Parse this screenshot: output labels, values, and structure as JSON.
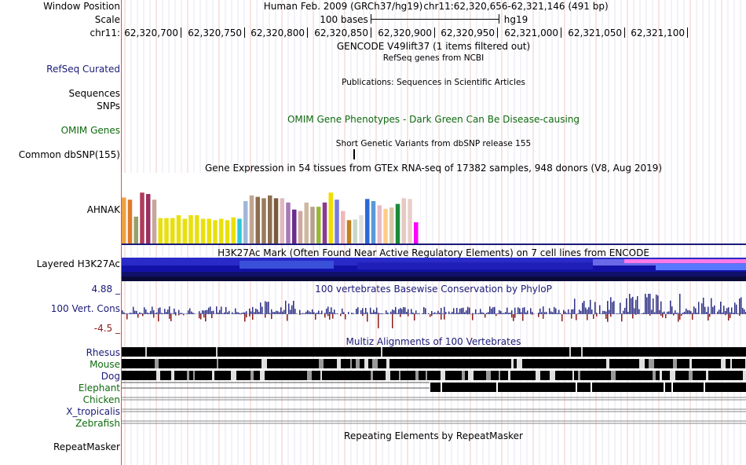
{
  "labels": {
    "window_position": "Window Position",
    "scale": "Scale",
    "chrom": "chr11:",
    "refseq": "RefSeq Curated",
    "sequences": "Sequences",
    "snps": "SNPs",
    "omim": "OMIM Genes",
    "common_dbsnp": "Common dbSNP(155)",
    "gtex_gene": "AHNAK",
    "h3k27ac": "Layered H3K27Ac",
    "cons_max": "4.88 _",
    "cons_name": "100 Vert. Cons",
    "cons_min": "-4.5 _",
    "repeatmasker": "RepeatMasker"
  },
  "header": {
    "assembly": "Human Feb. 2009 (GRCh37/hg19)",
    "position": "chr11:62,320,656-62,321,146 (491 bp)",
    "scale_text": "100 bases",
    "scale_db": "hg19"
  },
  "ruler": {
    "ticks": [
      "62,320,700",
      "62,320,750",
      "62,320,800",
      "62,320,850",
      "62,320,900",
      "62,320,950",
      "62,321,000",
      "62,321,050",
      "62,321,100"
    ]
  },
  "titles": {
    "gencode": "GENCODE V49lift37 (1 items filtered out)",
    "refseq": "RefSeq genes from NCBI",
    "publications": "Publications: Sequences in Scientific Articles",
    "omim": "OMIM Gene Phenotypes - Dark Green Can Be Disease-causing",
    "dbsnp": "Short Genetic Variants from dbSNP release 155",
    "gtex": "Gene Expression in 54 tissues from GTEx RNA-seq of 17382 samples, 948 donors (V8, Aug 2019)",
    "h3k27ac": "H3K27Ac Mark (Often Found Near Active Regulatory Elements) on 7 cell lines from ENCODE",
    "phylop": "100 vertebrates Basewise Conservation by PhyloP",
    "multiz": "Multiz Alignments of 100 Vertebrates",
    "repeatmasker": "Repeating Elements by RepeatMasker"
  },
  "species": [
    {
      "name": "Rhesus",
      "color": "#1a1a78"
    },
    {
      "name": "Mouse",
      "color": "#0f6a0f"
    },
    {
      "name": "Dog",
      "color": "#1a1a78"
    },
    {
      "name": "Elephant",
      "color": "#0f6a0f"
    },
    {
      "name": "Chicken",
      "color": "#0f6a0f"
    },
    {
      "name": "X_tropicalis",
      "color": "#1a1a78"
    },
    {
      "name": "Zebrafish",
      "color": "#0f6a0f"
    }
  ],
  "gtex_colors": [
    "#f0a040",
    "#e07a2a",
    "#96a06a",
    "#b03b5a",
    "#983060",
    "#c6a79a",
    "#e8e00c",
    "#e8e00c",
    "#e8e00c",
    "#e8e00c",
    "#e8e00c",
    "#e8e00c",
    "#e8e00c",
    "#e8e00c",
    "#e8e00c",
    "#e8e00c",
    "#e8e00c",
    "#e8e00c",
    "#e8e00c",
    "#2bc8d6",
    "#a0b8d8",
    "#c1a490",
    "#8c6c50",
    "#9c7a5a",
    "#8c6c50",
    "#7a5a3c",
    "#e0b8c0",
    "#a878b8",
    "#6b2b8c",
    "#cfa8a0",
    "#cfb8a0",
    "#b8a090",
    "#98b838",
    "#8a3a90",
    "#eedd00",
    "#7878e0",
    "#f0b8b8",
    "#c08020",
    "#c8d8c8",
    "#e0e0e0",
    "#2a6ad8",
    "#5a98d8",
    "#e8b8c8",
    "#ffcc88",
    "#d8c8a8",
    "#1a8a3a",
    "#e8c8c0",
    "#e8d0c8",
    "#ff00ff"
  ],
  "gtex_values": [
    0.65,
    0.62,
    0.38,
    0.72,
    0.7,
    0.62,
    0.36,
    0.36,
    0.36,
    0.4,
    0.35,
    0.4,
    0.4,
    0.35,
    0.35,
    0.33,
    0.35,
    0.33,
    0.37,
    0.35,
    0.6,
    0.68,
    0.66,
    0.64,
    0.68,
    0.64,
    0.64,
    0.58,
    0.48,
    0.46,
    0.58,
    0.52,
    0.52,
    0.58,
    0.72,
    0.62,
    0.46,
    0.33,
    0.34,
    0.4,
    0.63,
    0.6,
    0.54,
    0.49,
    0.51,
    0.56,
    0.64,
    0.63,
    0.3
  ]
}
